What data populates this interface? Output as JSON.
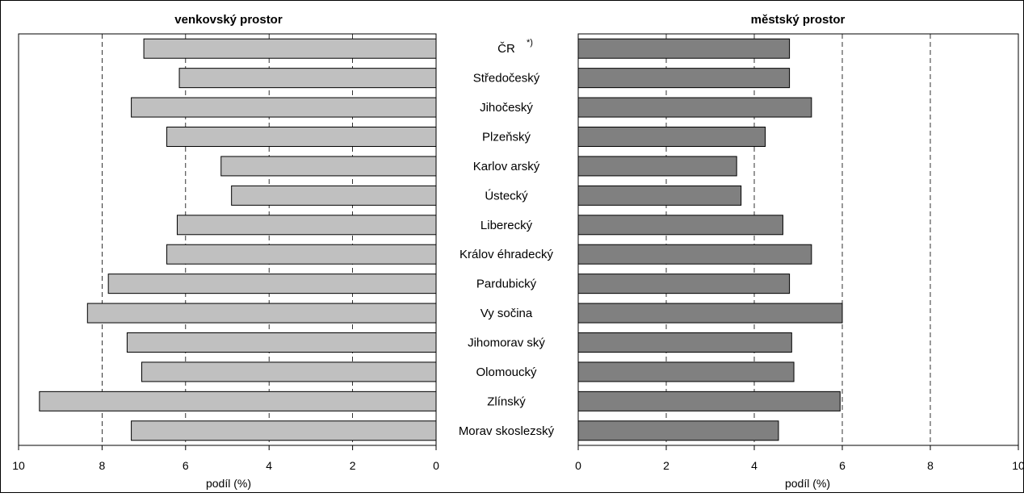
{
  "chart_data": [
    {
      "type": "bar",
      "orientation": "horizontal",
      "direction": "reversed",
      "title": "venkovský prostor",
      "xlabel": "podíl (%)",
      "xlim": [
        0,
        10
      ],
      "x_ticks": [
        "10",
        "8",
        "6",
        "4",
        "2",
        "0"
      ],
      "grid": "vertical dashed at 2, 4, 6, 8",
      "bar_color": "#c0c0c0",
      "categories": [
        "ČR",
        "Středočeský",
        "Jihočeský",
        "Plzeňský",
        "Karlov arský",
        "Ústecký",
        "Liberecký",
        "Králov éhradecký",
        "Pardubický",
        "Vy sočina",
        "Jihomorav ský",
        "Olomoucký",
        "Zlínský",
        "Morav skoslezský"
      ],
      "values": [
        7.0,
        6.15,
        7.3,
        6.45,
        5.15,
        4.9,
        6.2,
        6.45,
        7.85,
        8.35,
        7.4,
        7.05,
        9.5,
        7.3
      ]
    },
    {
      "type": "bar",
      "orientation": "horizontal",
      "title": "městský prostor",
      "xlabel": "podíl (%)",
      "xlim": [
        0,
        10
      ],
      "x_ticks": [
        "0",
        "2",
        "4",
        "6",
        "8",
        "10"
      ],
      "grid": "vertical dashed at 2, 4, 6, 8",
      "bar_color": "#808080",
      "categories": [
        "ČR",
        "Středočeský",
        "Jihočeský",
        "Plzeňský",
        "Karlov arský",
        "Ústecký",
        "Liberecký",
        "Králov éhradecký",
        "Pardubický",
        "Vy sočina",
        "Jihomorav ský",
        "Olomoucký",
        "Zlínský",
        "Morav skoslezský"
      ],
      "values": [
        4.8,
        4.8,
        5.3,
        4.25,
        3.6,
        3.7,
        4.65,
        5.3,
        4.8,
        6.0,
        4.85,
        4.9,
        5.95,
        4.55
      ]
    }
  ],
  "ccr_footnote": "*)"
}
